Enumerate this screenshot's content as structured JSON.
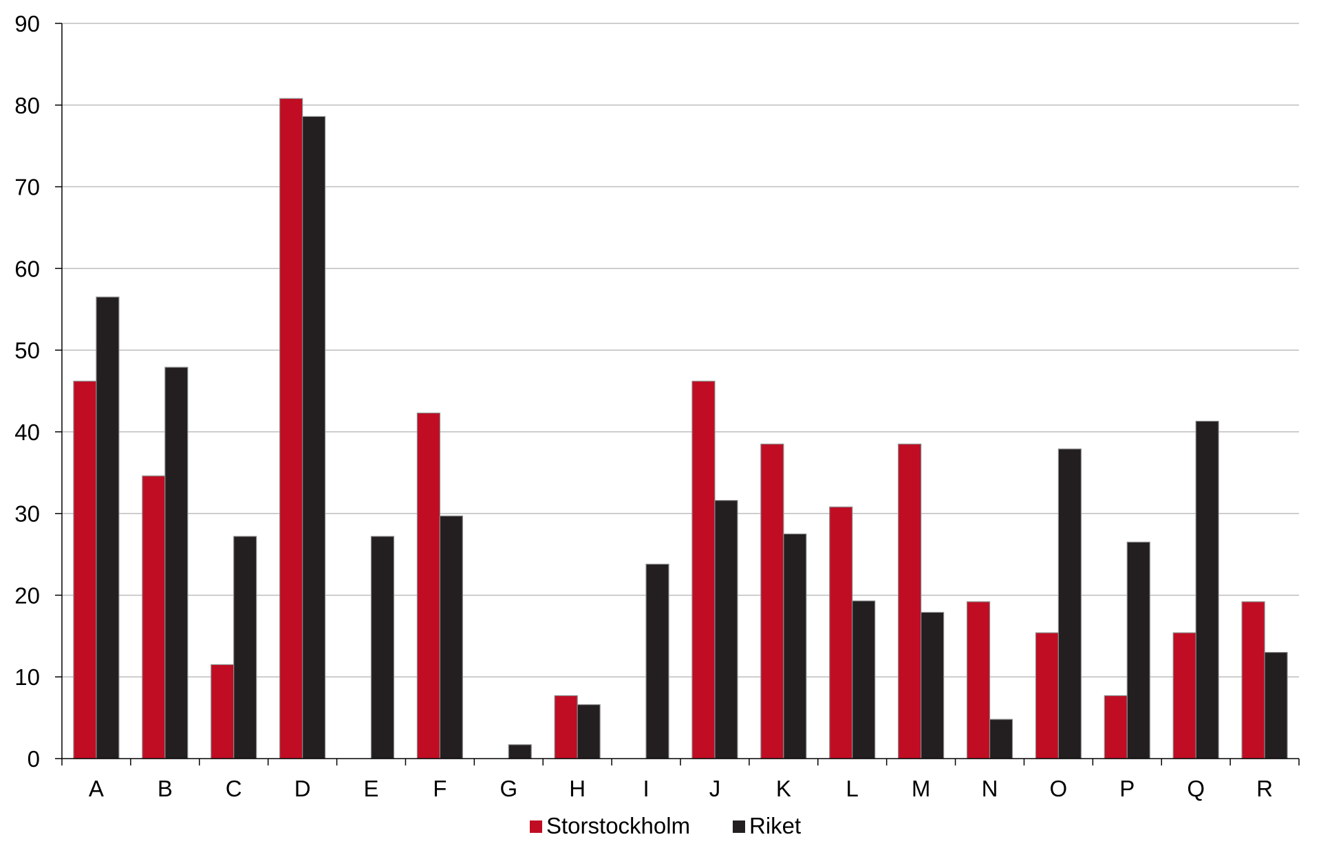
{
  "chart_data": {
    "type": "bar",
    "categories": [
      "A",
      "B",
      "C",
      "D",
      "E",
      "F",
      "G",
      "H",
      "I",
      "J",
      "K",
      "L",
      "M",
      "N",
      "O",
      "P",
      "Q",
      "R"
    ],
    "series": [
      {
        "name": "Storstockholm",
        "color": "#c00d23",
        "values": [
          46.2,
          34.6,
          11.5,
          80.8,
          0,
          42.3,
          0,
          7.7,
          0,
          46.2,
          38.5,
          30.8,
          38.5,
          19.2,
          15.4,
          7.7,
          15.4,
          19.2
        ]
      },
      {
        "name": "Riket",
        "color": "#231f20",
        "values": [
          56.5,
          47.9,
          27.2,
          78.6,
          27.2,
          29.7,
          1.7,
          6.6,
          23.8,
          31.6,
          27.5,
          19.3,
          17.9,
          4.8,
          37.9,
          26.5,
          41.3,
          13.0
        ]
      }
    ],
    "ylim": [
      0,
      90
    ],
    "yticks": [
      "0",
      "10",
      "20",
      "30",
      "40",
      "50",
      "60",
      "70",
      "80",
      "90"
    ],
    "title": "",
    "xlabel": "",
    "ylabel": "",
    "grid": true,
    "legend_position": "bottom-center"
  }
}
